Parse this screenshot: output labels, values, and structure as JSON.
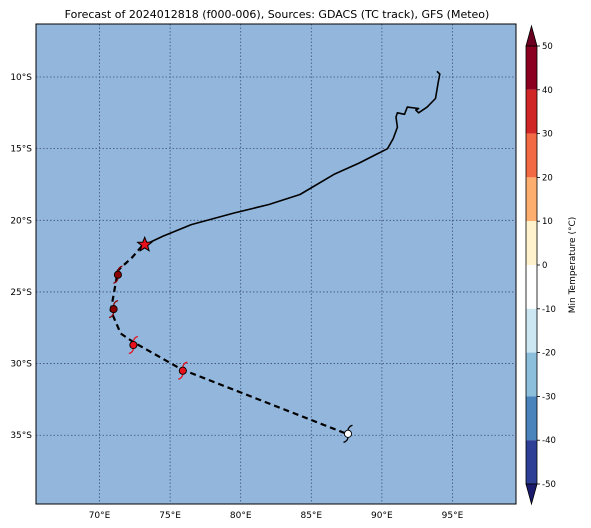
{
  "title": "Forecast of 2024012818 (f000-006), Sources: GDACS (TC track), GFS (Meteo)",
  "map": {
    "lon_range": [
      65.5,
      99.5
    ],
    "lat_range": [
      -39.8,
      -6.3
    ],
    "ocean_color": "#93b7dc",
    "grid_color": "#3a4f7a",
    "lon_ticks": [
      {
        "v": 70,
        "label": "70°E"
      },
      {
        "v": 75,
        "label": "75°E"
      },
      {
        "v": 80,
        "label": "80°E"
      },
      {
        "v": 85,
        "label": "85°E"
      },
      {
        "v": 90,
        "label": "90°E"
      },
      {
        "v": 95,
        "label": "95°E"
      }
    ],
    "lat_ticks": [
      {
        "v": -10,
        "label": "10°S"
      },
      {
        "v": -15,
        "label": "15°S"
      },
      {
        "v": -20,
        "label": "20°S"
      },
      {
        "v": -25,
        "label": "25°S"
      },
      {
        "v": -30,
        "label": "30°S"
      },
      {
        "v": -35,
        "label": "35°S"
      }
    ]
  },
  "track": {
    "past": [
      [
        93.9,
        -9.6
      ],
      [
        94.1,
        -9.8
      ],
      [
        94.0,
        -10.3
      ],
      [
        93.8,
        -11.5
      ],
      [
        93.2,
        -12.1
      ],
      [
        92.6,
        -12.5
      ],
      [
        92.4,
        -12.3
      ],
      [
        92.6,
        -12.2
      ],
      [
        91.8,
        -12.1
      ],
      [
        91.6,
        -12.6
      ],
      [
        91.1,
        -12.5
      ],
      [
        91.0,
        -12.8
      ],
      [
        91.1,
        -13.5
      ],
      [
        90.8,
        -14.3
      ],
      [
        90.4,
        -15.0
      ],
      [
        89.6,
        -15.4
      ],
      [
        88.4,
        -16.0
      ],
      [
        86.6,
        -16.8
      ],
      [
        84.2,
        -18.2
      ],
      [
        82.0,
        -18.9
      ],
      [
        79.5,
        -19.5
      ],
      [
        76.5,
        -20.3
      ],
      [
        74.5,
        -21.1
      ],
      [
        73.0,
        -21.8
      ]
    ],
    "forecast": [
      [
        73.0,
        -21.8
      ],
      [
        72.3,
        -22.6
      ],
      [
        71.3,
        -23.5
      ],
      [
        71.0,
        -25.2
      ],
      [
        70.8,
        -26.3
      ],
      [
        71.5,
        -27.9
      ],
      [
        72.4,
        -28.5
      ],
      [
        75.8,
        -30.4
      ],
      [
        87.5,
        -34.9
      ]
    ],
    "current_position": [
      73.2,
      -21.7
    ],
    "points": [
      {
        "lon": 71.3,
        "lat": -23.8,
        "color": "#8b0000"
      },
      {
        "lon": 71.0,
        "lat": -26.2,
        "color": "#8b0000"
      },
      {
        "lon": 72.4,
        "lat": -28.7,
        "color": "#e8101a"
      },
      {
        "lon": 75.9,
        "lat": -30.5,
        "color": "#e8101a"
      },
      {
        "lon": 87.6,
        "lat": -34.9,
        "color": "#ffffff"
      }
    ]
  },
  "colorbar": {
    "label": "Min Temperature (°C)",
    "ticks": [
      50,
      40,
      30,
      20,
      10,
      0,
      -10,
      -20,
      -30,
      -40,
      -50
    ],
    "bins": [
      {
        "from": 40,
        "to": 50,
        "color": "#8b0021"
      },
      {
        "from": 30,
        "to": 40,
        "color": "#d12626"
      },
      {
        "from": 20,
        "to": 30,
        "color": "#f26a44"
      },
      {
        "from": 10,
        "to": 20,
        "color": "#fcae6e"
      },
      {
        "from": 0,
        "to": 10,
        "color": "#fff2cc"
      },
      {
        "from": -10,
        "to": 0,
        "color": "#ffffff"
      },
      {
        "from": -20,
        "to": -10,
        "color": "#cce7f2"
      },
      {
        "from": -30,
        "to": -20,
        "color": "#8cbfdb"
      },
      {
        "from": -40,
        "to": -30,
        "color": "#4a84bd"
      },
      {
        "from": -50,
        "to": -40,
        "color": "#2c3e96"
      }
    ],
    "over_color": "#6b0020",
    "under_color": "#1a1a6e"
  }
}
